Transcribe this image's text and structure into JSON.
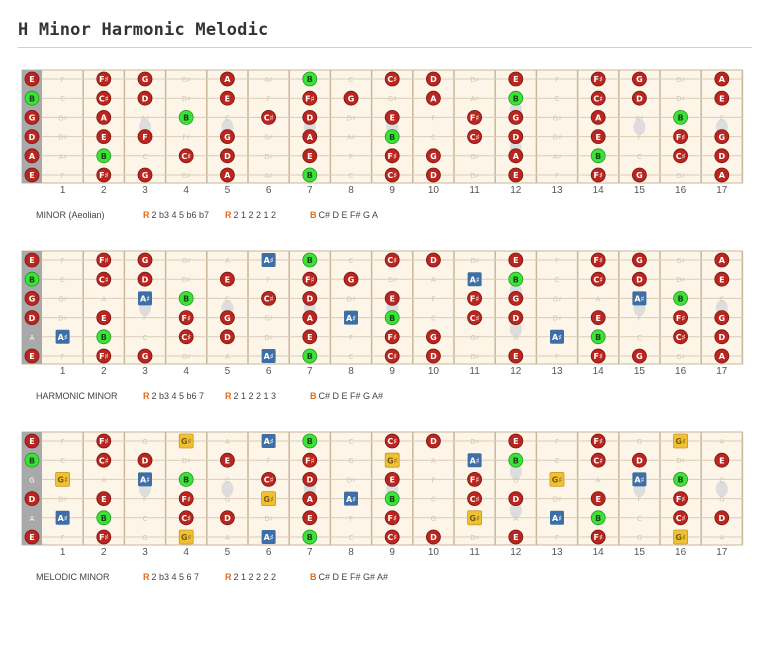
{
  "page": {
    "title": "H Minor Harmonic Melodic"
  },
  "colors": {
    "fretboard_bg": "#fdf6e8",
    "fret_line": "#c9b79a",
    "nut": "#a9a9a9",
    "inlay": "#dddddd",
    "root_green": "#3ee03a",
    "note_red": "#b8261f",
    "harmonic_blue": "#3d6ea6",
    "melodic_gold": "#f0c232",
    "ghost_text": "#d2c6b2",
    "accent_orange": "#e06c1c"
  },
  "fret_numbers": [
    "1",
    "2",
    "3",
    "4",
    "5",
    "6",
    "7",
    "8",
    "9",
    "10",
    "11",
    "12",
    "13",
    "14",
    "15",
    "16",
    "17"
  ],
  "diagrams": [
    {
      "id": "minor",
      "scale_name": "MINOR (Aeolian)",
      "formula_key": "R",
      "formula": "2 b3 4 5 b6 b7",
      "intervals_key": "R",
      "intervals": "2 1 2 2 1 2",
      "notes_key": "B",
      "notes": "C# D E F# G A",
      "strings": [
        {
          "open": "E",
          "frets": [
            "F",
            "F♯",
            "G",
            "G♯",
            "A",
            "A♯",
            "B",
            "C",
            "C♯",
            "D",
            "D♯",
            "E",
            "F",
            "F♯",
            "G",
            "G♯",
            "A"
          ]
        },
        {
          "open": "B",
          "frets": [
            "C",
            "C♯",
            "D",
            "D♯",
            "E",
            "F",
            "F♯",
            "G",
            "G♯",
            "A",
            "A♯",
            "B",
            "C",
            "C♯",
            "D",
            "D♯",
            "E"
          ]
        },
        {
          "open": "G",
          "frets": [
            "G♯",
            "A",
            "A♯",
            "B",
            "C",
            "C♯",
            "D",
            "D♯",
            "E",
            "F",
            "F♯",
            "G",
            "G♯",
            "A",
            "A♯",
            "B",
            "C"
          ]
        },
        {
          "open": "D",
          "frets": [
            "D♯",
            "E",
            "F",
            "F♯",
            "G",
            "G♯",
            "A",
            "A♯",
            "B",
            "C",
            "C♯",
            "D",
            "D♯",
            "E",
            "F",
            "F♯",
            "G"
          ]
        },
        {
          "open": "A",
          "frets": [
            "A♯",
            "B",
            "C",
            "C♯",
            "D",
            "D♯",
            "E",
            "F",
            "F♯",
            "G",
            "G♯",
            "A",
            "A♯",
            "B",
            "C",
            "C♯",
            "D"
          ]
        },
        {
          "open": "E",
          "frets": [
            "F",
            "F♯",
            "G",
            "G♯",
            "A",
            "A♯",
            "B",
            "C",
            "C♯",
            "D",
            "D♯",
            "E",
            "F",
            "F♯",
            "G",
            "G♯",
            "A"
          ]
        }
      ],
      "active": [
        [
          0,
          2,
          3,
          5,
          7,
          9,
          10,
          12,
          14,
          15,
          17
        ],
        [
          0,
          2,
          3,
          5,
          7,
          8,
          10,
          12,
          14,
          15,
          17
        ],
        [
          0,
          2,
          4,
          6,
          7,
          9,
          11,
          12,
          14,
          16
        ],
        [
          0,
          2,
          3,
          5,
          7,
          9,
          11,
          12,
          14,
          16,
          17
        ],
        [
          0,
          2,
          4,
          5,
          7,
          9,
          10,
          12,
          14,
          16,
          17
        ],
        [
          0,
          2,
          3,
          5,
          7,
          9,
          10,
          12,
          14,
          15,
          17
        ]
      ],
      "blue": [],
      "gold": []
    },
    {
      "id": "harmonic",
      "scale_name": "HARMONIC MINOR",
      "formula_key": "R",
      "formula": "2 b3 4 5 b6 7",
      "intervals_key": "R",
      "intervals": "2 1 2 2 1 3",
      "notes_key": "B",
      "notes": "C# D E F# G A#",
      "strings": [
        {
          "open": "E",
          "frets": [
            "F",
            "F♯",
            "G",
            "G♯",
            "A",
            "A♯",
            "B",
            "C",
            "C♯",
            "D",
            "D♯",
            "E",
            "F",
            "F♯",
            "G",
            "G♯",
            "A"
          ]
        },
        {
          "open": "B",
          "frets": [
            "C",
            "C♯",
            "D",
            "D♯",
            "E",
            "F",
            "F♯",
            "G",
            "G♯",
            "A",
            "A♯",
            "B",
            "C",
            "C♯",
            "D",
            "D♯",
            "E"
          ]
        },
        {
          "open": "G",
          "frets": [
            "G♯",
            "A",
            "A♯",
            "B",
            "C",
            "C♯",
            "D",
            "D♯",
            "E",
            "F",
            "F♯",
            "G",
            "G♯",
            "A",
            "A♯",
            "B",
            "C"
          ]
        },
        {
          "open": "D",
          "frets": [
            "D♯",
            "E",
            "F",
            "F♯",
            "G",
            "G♯",
            "A",
            "A♯",
            "B",
            "C",
            "C♯",
            "D",
            "D♯",
            "E",
            "F",
            "F♯",
            "G"
          ]
        },
        {
          "open": "A",
          "frets": [
            "A♯",
            "B",
            "C",
            "C♯",
            "D",
            "D♯",
            "E",
            "F",
            "F♯",
            "G",
            "G♯",
            "A",
            "A♯",
            "B",
            "C",
            "C♯",
            "D"
          ]
        },
        {
          "open": "E",
          "frets": [
            "F",
            "F♯",
            "G",
            "G♯",
            "A",
            "A♯",
            "B",
            "C",
            "C♯",
            "D",
            "D♯",
            "E",
            "F",
            "F♯",
            "G",
            "G♯",
            "A"
          ]
        }
      ],
      "active": [
        [
          0,
          2,
          3,
          6,
          7,
          9,
          10,
          12,
          14,
          15,
          17
        ],
        [
          0,
          2,
          3,
          5,
          7,
          8,
          11,
          12,
          14,
          15,
          17
        ],
        [
          0,
          3,
          4,
          6,
          7,
          9,
          11,
          12,
          15,
          16
        ],
        [
          0,
          2,
          4,
          5,
          7,
          8,
          9,
          11,
          12,
          14,
          16,
          17
        ],
        [
          1,
          2,
          4,
          5,
          7,
          9,
          10,
          13,
          14,
          16,
          17
        ],
        [
          0,
          2,
          3,
          6,
          7,
          9,
          10,
          12,
          14,
          15,
          17
        ]
      ],
      "blue": [
        [
          0,
          6
        ],
        [
          1,
          11
        ],
        [
          2,
          3
        ],
        [
          2,
          15
        ],
        [
          3,
          8
        ],
        [
          4,
          1
        ],
        [
          4,
          13
        ],
        [
          5,
          6
        ]
      ],
      "gold": []
    },
    {
      "id": "melodic",
      "scale_name": "MELODIC MINOR",
      "formula_key": "R",
      "formula": "2 b3 4 5 6 7",
      "intervals_key": "R",
      "intervals": "2 1 2 2 2 2",
      "notes_key": "B",
      "notes": "C# D E F# G# A#",
      "strings": [
        {
          "open": "E",
          "frets": [
            "F",
            "F♯",
            "G",
            "G♯",
            "A",
            "A♯",
            "B",
            "C",
            "C♯",
            "D",
            "D♯",
            "E",
            "F",
            "F♯",
            "G",
            "G♯",
            "A"
          ]
        },
        {
          "open": "B",
          "frets": [
            "C",
            "C♯",
            "D",
            "D♯",
            "E",
            "F",
            "F♯",
            "G",
            "G♯",
            "A",
            "A♯",
            "B",
            "C",
            "C♯",
            "D",
            "D♯",
            "E"
          ]
        },
        {
          "open": "G",
          "frets": [
            "G♯",
            "A",
            "A♯",
            "B",
            "C",
            "C♯",
            "D",
            "D♯",
            "E",
            "F",
            "F♯",
            "G",
            "G♯",
            "A",
            "A♯",
            "B",
            "C"
          ]
        },
        {
          "open": "D",
          "frets": [
            "D♯",
            "E",
            "F",
            "F♯",
            "G",
            "G♯",
            "A",
            "A♯",
            "B",
            "C",
            "C♯",
            "D",
            "D♯",
            "E",
            "F",
            "F♯",
            "G"
          ]
        },
        {
          "open": "A",
          "frets": [
            "A♯",
            "B",
            "C",
            "C♯",
            "D",
            "D♯",
            "E",
            "F",
            "F♯",
            "G",
            "G♯",
            "A",
            "A♯",
            "B",
            "C",
            "C♯",
            "D"
          ]
        },
        {
          "open": "E",
          "frets": [
            "F",
            "F♯",
            "G",
            "G♯",
            "A",
            "A♯",
            "B",
            "C",
            "C♯",
            "D",
            "D♯",
            "E",
            "F",
            "F♯",
            "G",
            "G♯",
            "A"
          ]
        }
      ],
      "active": [
        [
          0,
          2,
          4,
          6,
          7,
          9,
          10,
          12,
          14,
          16
        ],
        [
          0,
          2,
          3,
          5,
          7,
          9,
          11,
          12,
          14,
          15,
          17
        ],
        [
          1,
          3,
          4,
          6,
          7,
          9,
          11,
          13,
          15,
          16
        ],
        [
          0,
          2,
          4,
          6,
          7,
          8,
          9,
          11,
          12,
          14,
          16
        ],
        [
          1,
          2,
          4,
          5,
          7,
          9,
          11,
          13,
          14,
          16,
          17
        ],
        [
          0,
          2,
          4,
          6,
          7,
          9,
          10,
          12,
          14,
          16
        ]
      ],
      "blue": [
        [
          0,
          6
        ],
        [
          1,
          11
        ],
        [
          2,
          3
        ],
        [
          2,
          15
        ],
        [
          3,
          8
        ],
        [
          4,
          1
        ],
        [
          4,
          13
        ],
        [
          5,
          6
        ]
      ],
      "gold": [
        [
          0,
          4
        ],
        [
          0,
          16
        ],
        [
          1,
          9
        ],
        [
          2,
          1
        ],
        [
          2,
          13
        ],
        [
          3,
          6
        ],
        [
          4,
          11
        ],
        [
          5,
          4
        ],
        [
          5,
          16
        ]
      ]
    }
  ]
}
